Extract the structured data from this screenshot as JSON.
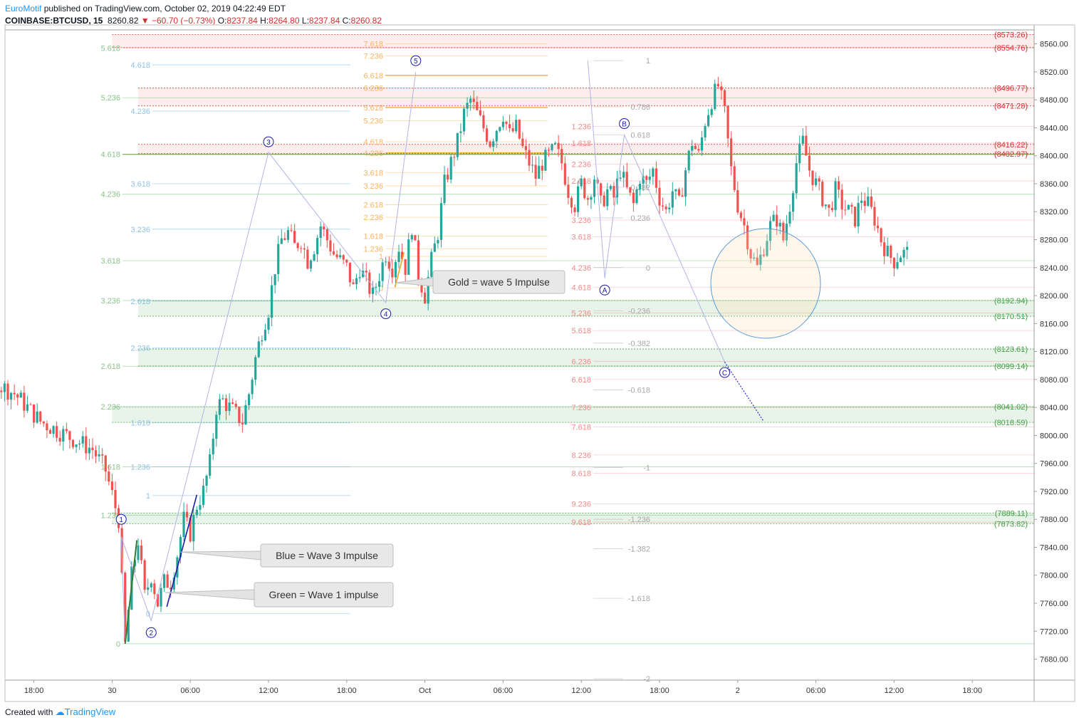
{
  "header": {
    "publisher": "EuroMotif",
    "published_text": " published on TradingView.com, October 02, 2019 04:22:49 EDT",
    "symbol": "COINBASE:BTCUSD, 15",
    "last": "8260.82",
    "change": "−60.70 (−0.73%)",
    "o_label": "O:",
    "o": "8237.84",
    "h_label": "H:",
    "h": "8264.80",
    "l_label": "L:",
    "l": "8237.84",
    "c_label": "C:",
    "c": "8260.82",
    "down_arrow": "▼"
  },
  "footer": {
    "created_with": "Created with",
    "logo_text": "TradingView"
  },
  "colors": {
    "up": "#26a69a",
    "down": "#ef5350",
    "red_line": "#d32f2f",
    "green_line": "#43a047",
    "blue_impulse": "#1a1aa8",
    "green_impulse": "#2e7d32",
    "gold_impulse": "#f59f1a",
    "wave_line": "#b0b4e8"
  },
  "chart_data": {
    "type": "candlestick",
    "timeframe": "15",
    "ylim": [
      7650,
      8580
    ],
    "yticks": [
      7680,
      7720,
      7760,
      7800,
      7840,
      7880,
      7920,
      7960,
      8000,
      8040,
      8080,
      8120,
      8160,
      8200,
      8240,
      8280,
      8320,
      8360,
      8400,
      8440,
      8480,
      8520,
      8560
    ],
    "time_range_hours": [
      -27.5,
      49
    ],
    "xticks": [
      {
        "h": -6,
        "label": "18:00"
      },
      {
        "h": 0,
        "label": "30"
      },
      {
        "h": 6,
        "label": "06:00"
      },
      {
        "h": 12,
        "label": "12:00"
      },
      {
        "h": 18,
        "label": "18:00"
      },
      {
        "h": 24,
        "label": "Oct"
      },
      {
        "h": 30,
        "label": "06:00"
      },
      {
        "h": 36,
        "label": "12:00"
      },
      {
        "h": 42,
        "label": "18:00"
      },
      {
        "h": 48,
        "label": "2"
      },
      {
        "h": 54,
        "label": "06:00"
      },
      {
        "h": 60,
        "label": "12:00"
      },
      {
        "h": 66,
        "label": "18:00"
      }
    ],
    "path": [
      [
        -27.5,
        7950
      ],
      [
        -26.5,
        7990
      ],
      [
        -25.5,
        8020
      ],
      [
        -24.5,
        8030
      ],
      [
        -23.5,
        8070
      ],
      [
        -22.5,
        8110
      ],
      [
        -21.5,
        8100
      ],
      [
        -20.5,
        8070
      ],
      [
        -19.5,
        8060
      ],
      [
        -18.5,
        8040
      ],
      [
        -17.5,
        8020
      ],
      [
        -16.5,
        8010
      ],
      [
        -15.5,
        8000
      ],
      [
        -14.5,
        7990
      ],
      [
        -13.5,
        7980
      ],
      [
        -12.5,
        7950
      ],
      [
        -11.5,
        7880
      ],
      [
        -11,
        7700
      ],
      [
        -10.5,
        7800
      ],
      [
        -10,
        7850
      ],
      [
        -9.5,
        7770
      ],
      [
        -9,
        7800
      ],
      [
        -8.5,
        7760
      ],
      [
        -8,
        7790
      ],
      [
        -7.5,
        7790
      ],
      [
        -7,
        7830
      ],
      [
        -6.5,
        7880
      ],
      [
        -6,
        7860
      ],
      [
        -5.5,
        7900
      ],
      [
        -5,
        7920
      ],
      [
        -4.5,
        7960
      ],
      [
        -4,
        8040
      ],
      [
        -3.5,
        8050
      ],
      [
        -3,
        8040
      ],
      [
        -2.5,
        8030
      ],
      [
        -2,
        8020
      ],
      [
        -1.5,
        8060
      ],
      [
        -1,
        8110
      ],
      [
        -0.5,
        8150
      ],
      [
        0,
        8180
      ],
      [
        0.5,
        8240
      ],
      [
        1,
        8280
      ],
      [
        1.5,
        8290
      ],
      [
        2,
        8270
      ],
      [
        2.5,
        8280
      ],
      [
        3,
        8250
      ],
      [
        3.5,
        8270
      ],
      [
        4,
        8300
      ],
      [
        4.5,
        8280
      ],
      [
        5,
        8260
      ],
      [
        5.5,
        8250
      ],
      [
        6,
        8240
      ],
      [
        6.5,
        8210
      ],
      [
        7,
        8240
      ],
      [
        7.5,
        8220
      ],
      [
        8,
        8200
      ],
      [
        8.5,
        8230
      ],
      [
        9,
        8260
      ],
      [
        9.5,
        8240
      ],
      [
        10,
        8270
      ],
      [
        10.5,
        8240
      ],
      [
        11,
        8300
      ],
      [
        11.5,
        8230
      ],
      [
        12,
        8200
      ],
      [
        12.5,
        8250
      ],
      [
        13,
        8290
      ],
      [
        13.5,
        8360
      ],
      [
        14,
        8390
      ],
      [
        14.5,
        8420
      ],
      [
        15,
        8460
      ],
      [
        15.5,
        8480
      ],
      [
        16,
        8460
      ],
      [
        16.5,
        8440
      ],
      [
        17,
        8420
      ],
      [
        17.5,
        8440
      ],
      [
        18,
        8460
      ],
      [
        18.5,
        8430
      ],
      [
        19,
        8440
      ],
      [
        19.5,
        8410
      ],
      [
        20,
        8390
      ],
      [
        20.5,
        8370
      ],
      [
        21,
        8390
      ],
      [
        21.5,
        8400
      ],
      [
        22,
        8410
      ],
      [
        22.5,
        8390
      ],
      [
        23,
        8350
      ],
      [
        23.5,
        8330
      ],
      [
        24,
        8360
      ],
      [
        24.5,
        8340
      ],
      [
        25,
        8370
      ],
      [
        25.5,
        8330
      ],
      [
        26,
        8350
      ],
      [
        26.5,
        8340
      ],
      [
        27,
        8380
      ],
      [
        27.5,
        8350
      ],
      [
        28,
        8330
      ],
      [
        28.5,
        8370
      ],
      [
        29,
        8360
      ],
      [
        29.5,
        8380
      ],
      [
        30,
        8340
      ],
      [
        30.5,
        8320
      ],
      [
        31,
        8350
      ],
      [
        31.5,
        8330
      ],
      [
        32,
        8380
      ],
      [
        32.5,
        8420
      ],
      [
        33,
        8400
      ],
      [
        33.5,
        8450
      ],
      [
        34,
        8480
      ],
      [
        34.5,
        8500
      ],
      [
        35,
        8460
      ],
      [
        35.5,
        8380
      ],
      [
        36,
        8330
      ],
      [
        36.5,
        8300
      ],
      [
        37,
        8260
      ],
      [
        37.5,
        8240
      ],
      [
        38,
        8270
      ],
      [
        38.5,
        8300
      ],
      [
        39,
        8310
      ],
      [
        39.5,
        8280
      ],
      [
        40,
        8330
      ],
      [
        40.5,
        8390
      ],
      [
        41,
        8420
      ],
      [
        41.5,
        8380
      ],
      [
        42,
        8360
      ],
      [
        42.5,
        8340
      ],
      [
        43,
        8320
      ],
      [
        43.5,
        8350
      ],
      [
        44,
        8330
      ],
      [
        44.5,
        8320
      ],
      [
        45,
        8310
      ],
      [
        45.5,
        8340
      ],
      [
        46,
        8330
      ],
      [
        46.5,
        8310
      ],
      [
        47,
        8280
      ],
      [
        47.5,
        8260
      ],
      [
        48,
        8250
      ],
      [
        48.5,
        8260
      ],
      [
        49,
        8261
      ]
    ],
    "zones": [
      {
        "lo": 8554.76,
        "hi": 8573.26,
        "color": "red",
        "start": -12
      },
      {
        "lo": 8471.28,
        "hi": 8496.77,
        "color": "red",
        "start": -10
      },
      {
        "lo": 8402.97,
        "hi": 8416.22,
        "color": "red",
        "start": -10
      },
      {
        "lo": 8170.51,
        "hi": 8192.94,
        "color": "green",
        "start": -10
      },
      {
        "lo": 8099.14,
        "hi": 8123.61,
        "color": "green",
        "start": -10
      },
      {
        "lo": 8018.59,
        "hi": 8041.02,
        "color": "green",
        "start": -12
      },
      {
        "lo": 7873.82,
        "hi": 7889.11,
        "color": "green",
        "start": -12
      }
    ],
    "right_labels": [
      {
        "text": "(8573.26)",
        "value": 8573.26,
        "color": "red"
      },
      {
        "text": "(8554.76)",
        "value": 8554.76,
        "color": "red"
      },
      {
        "text": "(8496.77)",
        "value": 8496.77,
        "color": "red"
      },
      {
        "text": "(8471.28)",
        "value": 8471.28,
        "color": "red"
      },
      {
        "text": "(8416.22)",
        "value": 8416.22,
        "color": "red"
      },
      {
        "text": "(8402.97)",
        "value": 8402.97,
        "color": "red"
      },
      {
        "text": "(8192.94)",
        "value": 8192.94,
        "color": "green"
      },
      {
        "text": "(8170.51)",
        "value": 8170.51,
        "color": "green"
      },
      {
        "text": "(8123.61)",
        "value": 8123.61,
        "color": "green"
      },
      {
        "text": "(8099.14)",
        "value": 8099.14,
        "color": "green"
      },
      {
        "text": "(8041.02)",
        "value": 8041.02,
        "color": "green"
      },
      {
        "text": "(8018.59)",
        "value": 8018.59,
        "color": "green"
      },
      {
        "text": "(7889.11)",
        "value": 7889.11,
        "color": "green"
      },
      {
        "text": "(7873.82)",
        "value": 7873.82,
        "color": "green"
      }
    ],
    "fib_green": [
      {
        "label": "5.618",
        "value": 8554
      },
      {
        "label": "5.236",
        "value": 8483
      },
      {
        "label": "4.618",
        "value": 8402
      },
      {
        "label": "4.236",
        "value": 8345
      },
      {
        "label": "3.618",
        "value": 8250
      },
      {
        "label": "3.236",
        "value": 8193
      },
      {
        "label": "2.618",
        "value": 8099
      },
      {
        "label": "2.236",
        "value": 8041
      },
      {
        "label": "1.618",
        "value": 7955
      },
      {
        "label": "1.236",
        "value": 7886
      },
      {
        "label": "0",
        "value": 7702
      }
    ],
    "fib_blue": [
      {
        "label": "4.618",
        "value": 8530
      },
      {
        "label": "4.236",
        "value": 8464
      },
      {
        "label": "3.618",
        "value": 8360
      },
      {
        "label": "3.236",
        "value": 8295
      },
      {
        "label": "2.618",
        "value": 8192
      },
      {
        "label": "2.236",
        "value": 8125
      },
      {
        "label": "1.618",
        "value": 8018
      },
      {
        "label": "1.236",
        "value": 7955
      },
      {
        "label": "1",
        "value": 7914
      },
      {
        "label": "0",
        "value": 7745
      }
    ],
    "fib_gold": [
      {
        "label": "7.618",
        "value": 8560
      },
      {
        "label": "7.236",
        "value": 8543
      },
      {
        "label": "6.618",
        "value": 8515
      },
      {
        "label": "6.236",
        "value": 8497
      },
      {
        "label": "5.618",
        "value": 8469
      },
      {
        "label": "5.236",
        "value": 8450
      },
      {
        "label": "4.618",
        "value": 8420
      },
      {
        "label": "4.236",
        "value": 8404
      },
      {
        "label": "3.618",
        "value": 8376
      },
      {
        "label": "3.236",
        "value": 8357
      },
      {
        "label": "2.618",
        "value": 8330
      },
      {
        "label": "2.236",
        "value": 8312
      },
      {
        "label": "1.618",
        "value": 8285
      },
      {
        "label": "1.236",
        "value": 8267
      },
      {
        "label": "1",
        "value": 8256
      },
      {
        "label": "0",
        "value": 8211
      }
    ],
    "fib_red": [
      {
        "label": "1.236",
        "value": 8442
      },
      {
        "label": "1.618",
        "value": 8418
      },
      {
        "label": "2.236",
        "value": 8388
      },
      {
        "label": "2.618",
        "value": 8364
      },
      {
        "label": "3.236",
        "value": 8308
      },
      {
        "label": "3.618",
        "value": 8284
      },
      {
        "label": "4.236",
        "value": 8240
      },
      {
        "label": "4.618",
        "value": 8212
      },
      {
        "label": "5.236",
        "value": 8175
      },
      {
        "label": "5.618",
        "value": 8150
      },
      {
        "label": "6.236",
        "value": 8106
      },
      {
        "label": "6.618",
        "value": 8080
      },
      {
        "label": "7.236",
        "value": 8040
      },
      {
        "label": "7.618",
        "value": 8012
      },
      {
        "label": "8.236",
        "value": 7972
      },
      {
        "label": "8.618",
        "value": 7946
      },
      {
        "label": "9.236",
        "value": 7902
      },
      {
        "label": "9.618",
        "value": 7876
      }
    ],
    "fib_gray": [
      {
        "label": "1",
        "value": 8536
      },
      {
        "label": "0.786",
        "value": 8470
      },
      {
        "label": "0.618",
        "value": 8430
      },
      {
        "label": "0.382",
        "value": 8355
      },
      {
        "label": "0.236",
        "value": 8311
      },
      {
        "label": "0",
        "value": 8240
      },
      {
        "label": "-0.236",
        "value": 8178
      },
      {
        "label": "-0.382",
        "value": 8132
      },
      {
        "label": "-0.618",
        "value": 8065
      },
      {
        "label": "-1",
        "value": 7954
      },
      {
        "label": "-1.236",
        "value": 7880
      },
      {
        "label": "-1.382",
        "value": 7838
      },
      {
        "label": "-1.618",
        "value": 7767
      },
      {
        "label": "-2",
        "value": 7652
      }
    ],
    "waves": [
      {
        "label": "1",
        "t": -11.3,
        "v": 7855,
        "lt": -11.3,
        "lv": 7880
      },
      {
        "label": "2",
        "t": -9.0,
        "v": 7735,
        "lt": -9.0,
        "lv": 7718
      },
      {
        "label": "3",
        "t": 0.0,
        "v": 8405,
        "lt": 0.0,
        "lv": 8420
      },
      {
        "label": "4",
        "t": 9.0,
        "v": 8190,
        "lt": 9.0,
        "lv": 8174
      },
      {
        "label": "5",
        "t": 11.3,
        "v": 8520,
        "lt": 11.3,
        "lv": 8536
      },
      {
        "label": "A",
        "t": 25.8,
        "v": 8225,
        "lt": 25.8,
        "lv": 8208
      },
      {
        "label": "B",
        "t": 27.3,
        "v": 8430,
        "lt": 27.3,
        "lv": 8446
      },
      {
        "label": "C",
        "t": 35.0,
        "v": 8105,
        "lt": 35.0,
        "lv": 8090
      }
    ],
    "callouts": [
      {
        "text": "Gold = wave 5 Impulse"
      },
      {
        "text": "Blue = Wave 3 Impulse"
      },
      {
        "text": "Green = Wave 1 impulse"
      }
    ]
  }
}
